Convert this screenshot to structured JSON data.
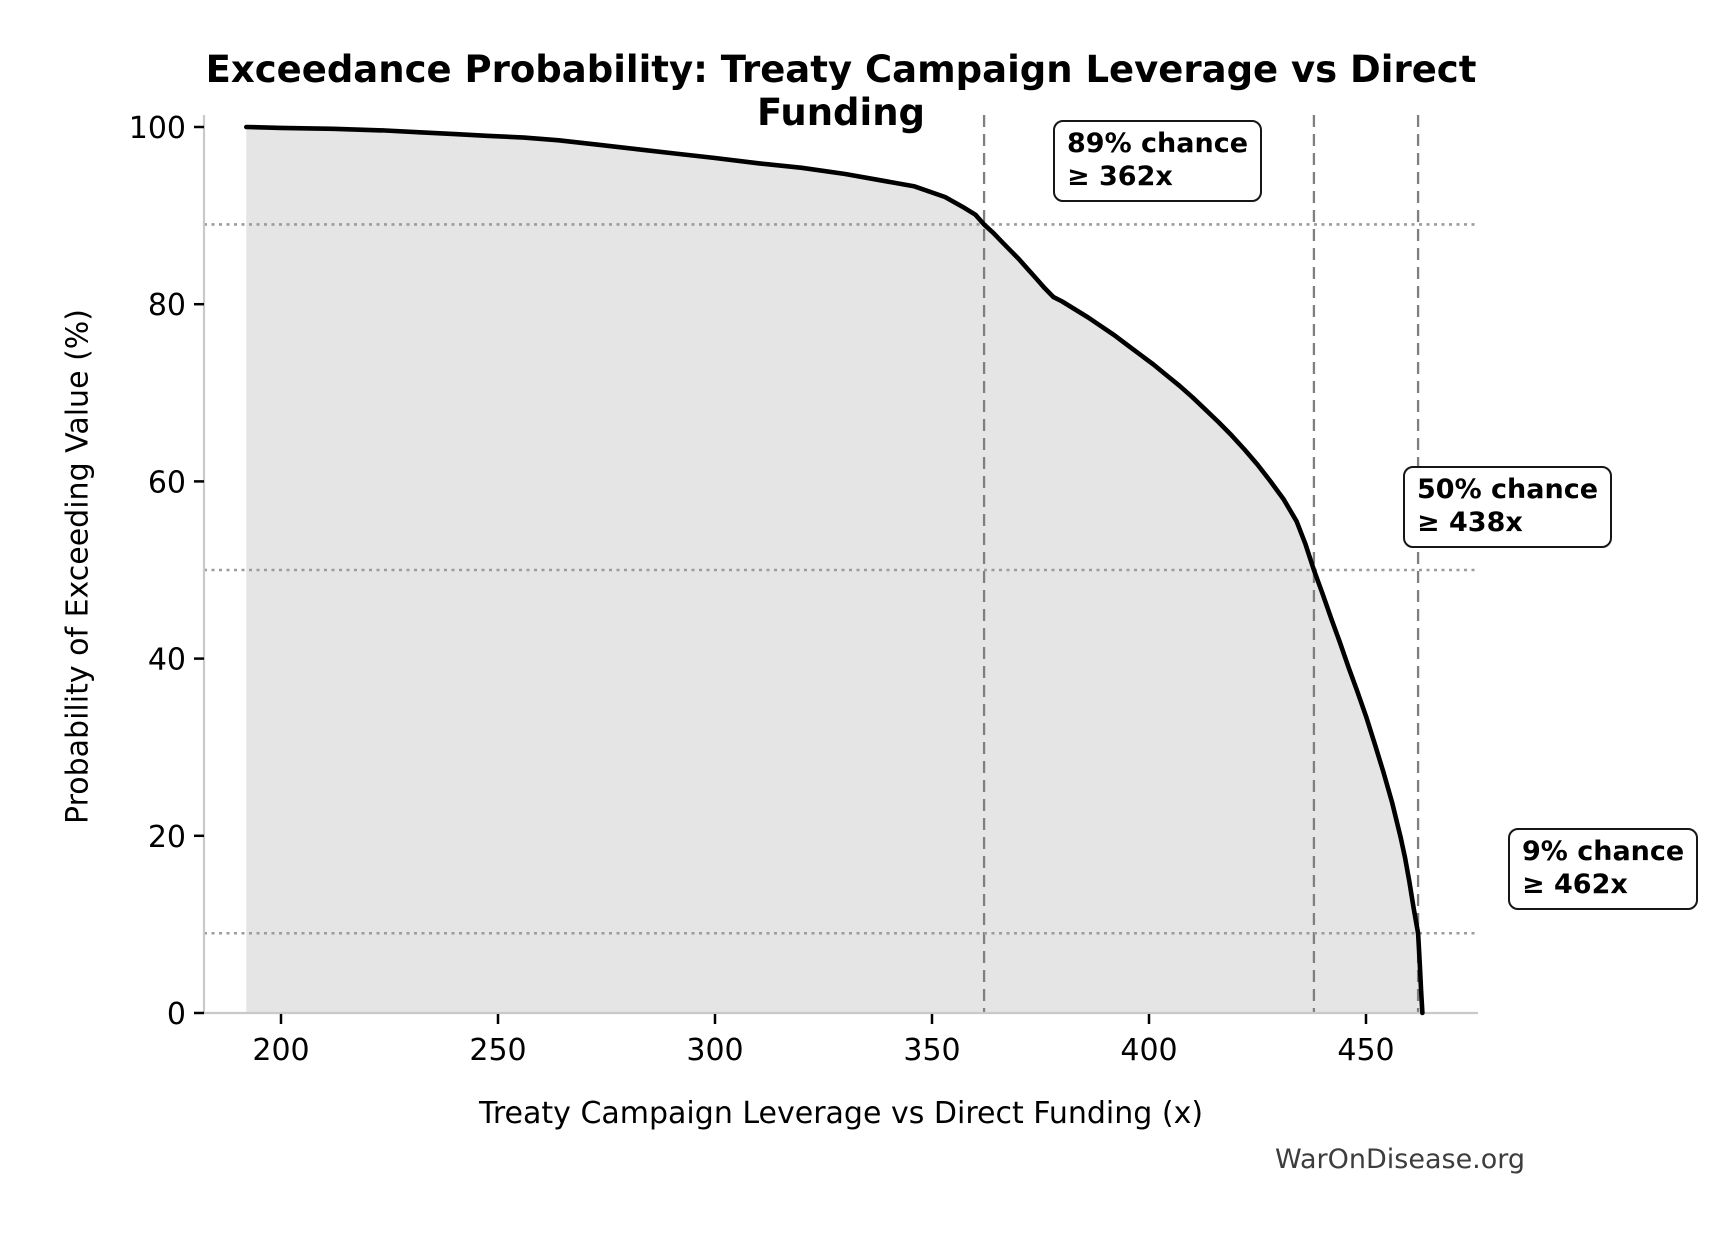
{
  "watermark": {
    "text": "WarOnDisease.org"
  },
  "chart_data": {
    "type": "area",
    "title": "Exceedance Probability: Treaty Campaign Leverage vs Direct Funding",
    "xlabel": "Treaty Campaign Leverage vs Direct Funding (x)",
    "ylabel": "Probability of Exceeding Value (%)",
    "xlim": [
      182,
      476
    ],
    "ylim": [
      0,
      101.4
    ],
    "x_ticks": [
      200,
      250,
      300,
      350,
      400,
      450
    ],
    "y_ticks": [
      0,
      20,
      40,
      60,
      80,
      100
    ],
    "grid": "off (reference lines only)",
    "legend": "none",
    "series": [
      {
        "name": "exceedance-curve",
        "points": [
          [
            192,
            100
          ],
          [
            200,
            99.9
          ],
          [
            212,
            99.8
          ],
          [
            224,
            99.6
          ],
          [
            232,
            99.4
          ],
          [
            240,
            99.2
          ],
          [
            248,
            99.0
          ],
          [
            256,
            98.8
          ],
          [
            264,
            98.5
          ],
          [
            273,
            98.0
          ],
          [
            282,
            97.5
          ],
          [
            291,
            97.0
          ],
          [
            300,
            96.5
          ],
          [
            310,
            95.9
          ],
          [
            320,
            95.4
          ],
          [
            330,
            94.7
          ],
          [
            338,
            94.0
          ],
          [
            346,
            93.3
          ],
          [
            353,
            92.1
          ],
          [
            357,
            91.0
          ],
          [
            360,
            90.1
          ],
          [
            362,
            89.0
          ],
          [
            364,
            88.1
          ],
          [
            366,
            87.1
          ],
          [
            368,
            86.1
          ],
          [
            370,
            85.1
          ],
          [
            372,
            84.0
          ],
          [
            374,
            82.9
          ],
          [
            376,
            81.8
          ],
          [
            378,
            80.8
          ],
          [
            380,
            80.3
          ],
          [
            383,
            79.4
          ],
          [
            386,
            78.5
          ],
          [
            389,
            77.5
          ],
          [
            392,
            76.5
          ],
          [
            395,
            75.4
          ],
          [
            398,
            74.3
          ],
          [
            401,
            73.2
          ],
          [
            404,
            72.0
          ],
          [
            407,
            70.8
          ],
          [
            410,
            69.5
          ],
          [
            413,
            68.1
          ],
          [
            416,
            66.7
          ],
          [
            419,
            65.2
          ],
          [
            422,
            63.6
          ],
          [
            425,
            61.9
          ],
          [
            428,
            60.0
          ],
          [
            431,
            58.0
          ],
          [
            434,
            55.5
          ],
          [
            436,
            53.0
          ],
          [
            438,
            50.0
          ],
          [
            440,
            47.3
          ],
          [
            442,
            44.5
          ],
          [
            444,
            41.8
          ],
          [
            446,
            39.0
          ],
          [
            448,
            36.3
          ],
          [
            450,
            33.5
          ],
          [
            452,
            30.4
          ],
          [
            454,
            27.2
          ],
          [
            456,
            23.8
          ],
          [
            458,
            19.8
          ],
          [
            459,
            17.5
          ],
          [
            460,
            14.8
          ],
          [
            461,
            11.8
          ],
          [
            462,
            9.0
          ],
          [
            462.4,
            5.5
          ],
          [
            462.7,
            2.5
          ],
          [
            463,
            0
          ]
        ]
      }
    ],
    "reference_lines": [
      {
        "x": 362,
        "probability": 89
      },
      {
        "x": 438,
        "probability": 50
      },
      {
        "x": 462,
        "probability": 9
      }
    ],
    "annotations": [
      {
        "line1": "89% chance",
        "line2": "≥ 362x"
      },
      {
        "line1": "50% chance",
        "line2": "≥ 438x"
      },
      {
        "line1": "9% chance",
        "line2": "≥ 462x"
      }
    ],
    "colors": {
      "curve": "#000000",
      "fill": "#e5e5e5",
      "dashed_reference": "#7f7f7f",
      "dotted_reference": "#9c9c9c",
      "spine": "#c9c9c9",
      "tick": "#000000",
      "watermark": "#3d3d3d"
    }
  }
}
